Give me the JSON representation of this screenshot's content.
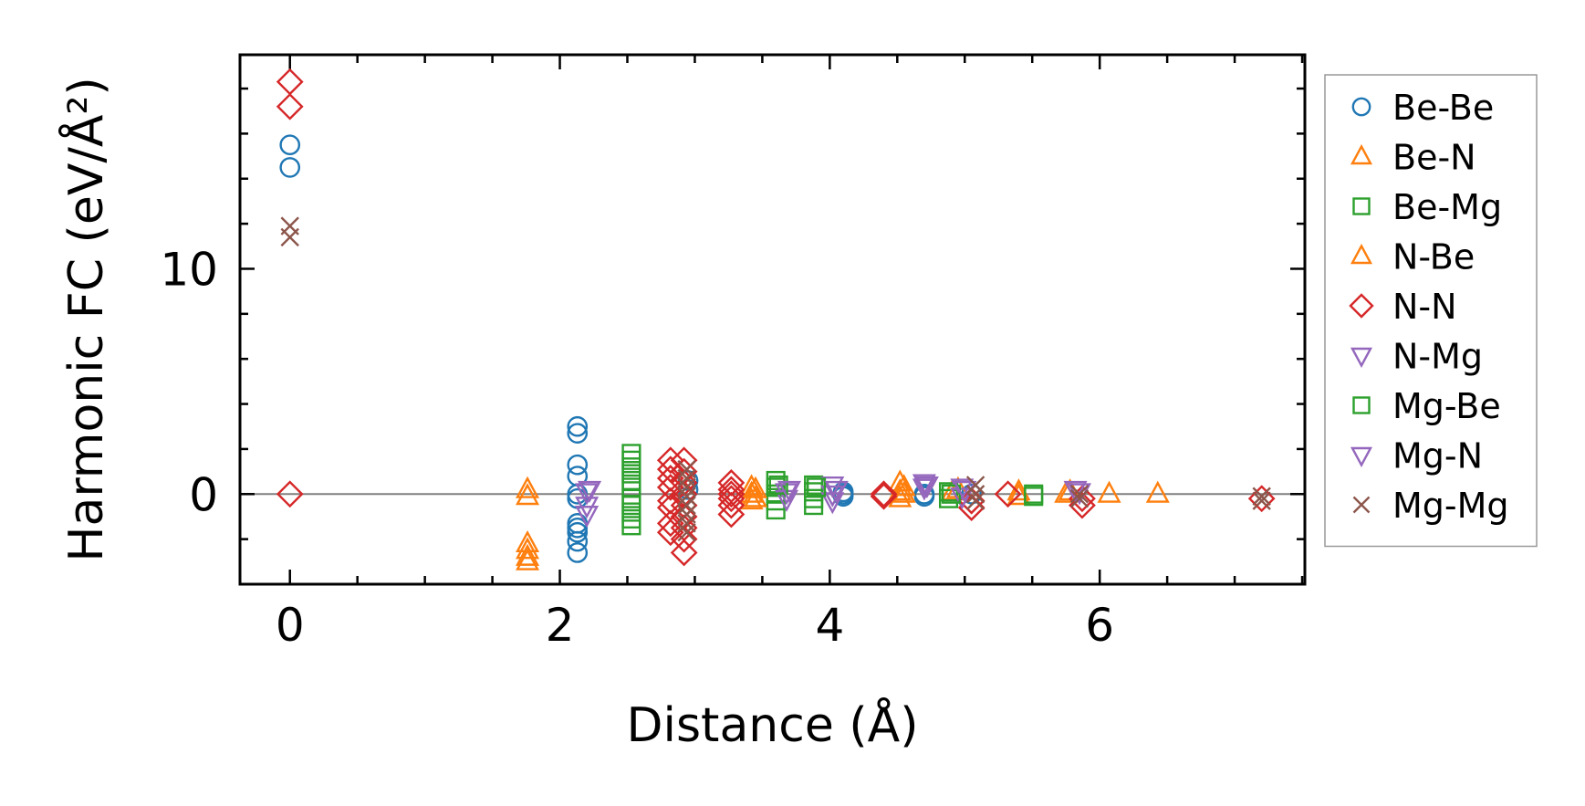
{
  "chart_data": {
    "type": "scatter",
    "title": "",
    "xlabel": "Distance (Å)",
    "ylabel": "Harmonic FC (eV/Å²)",
    "xlim": [
      -0.37,
      7.52
    ],
    "ylim": [
      -4.0,
      19.5
    ],
    "x_ticks": [
      0,
      2,
      4,
      6
    ],
    "x_tick_labels": [
      "0",
      "2",
      "4",
      "6"
    ],
    "y_ticks": [
      0,
      10
    ],
    "y_tick_labels": [
      "0",
      "10"
    ],
    "x_minor_step": 0.5,
    "y_minor_step": 2,
    "zero_line": true,
    "grid": false,
    "legend_position": "outside-right",
    "series": [
      {
        "name": "Be-Be",
        "marker": "circle",
        "color": "#1f77b4",
        "points": [
          [
            0,
            15.5
          ],
          [
            0,
            14.5
          ],
          [
            2.13,
            3.0
          ],
          [
            2.13,
            2.7
          ],
          [
            2.13,
            1.3
          ],
          [
            2.13,
            0.8
          ],
          [
            2.13,
            0.0
          ],
          [
            2.13,
            -0.2
          ],
          [
            2.13,
            -1.3
          ],
          [
            2.13,
            -1.5
          ],
          [
            2.13,
            -1.7
          ],
          [
            2.13,
            -2.1
          ],
          [
            2.13,
            -2.6
          ],
          [
            2.95,
            0.6
          ],
          [
            2.95,
            0.2
          ],
          [
            4.1,
            0.1
          ],
          [
            4.1,
            0.0
          ],
          [
            4.1,
            -0.1
          ],
          [
            4.7,
            0.0
          ],
          [
            4.7,
            -0.1
          ],
          [
            5.05,
            0.0
          ]
        ]
      },
      {
        "name": "Be-N",
        "marker": "triangle-up",
        "color": "#ff7f0e",
        "points": [
          [
            1.76,
            0.2
          ],
          [
            1.76,
            -0.1
          ],
          [
            1.76,
            -2.2
          ],
          [
            1.76,
            -2.5
          ],
          [
            1.76,
            -2.8
          ],
          [
            1.76,
            -3.0
          ],
          [
            3.42,
            0.3
          ],
          [
            3.42,
            0.0
          ],
          [
            3.42,
            -0.3
          ],
          [
            4.52,
            0.5
          ],
          [
            4.52,
            0.1
          ],
          [
            4.52,
            -0.2
          ],
          [
            4.91,
            0.1
          ],
          [
            5.4,
            0.1
          ],
          [
            5.4,
            -0.1
          ],
          [
            5.75,
            0.0
          ],
          [
            6.07,
            0.0
          ],
          [
            6.43,
            0.0
          ]
        ]
      },
      {
        "name": "Be-Mg",
        "marker": "square",
        "color": "#2ca02c",
        "points": [
          [
            2.53,
            1.8
          ],
          [
            2.53,
            1.5
          ],
          [
            2.53,
            1.2
          ],
          [
            2.53,
            0.9
          ],
          [
            2.53,
            0.6
          ],
          [
            2.53,
            0.3
          ],
          [
            2.53,
            -0.2
          ],
          [
            2.53,
            -0.5
          ],
          [
            2.53,
            -0.8
          ],
          [
            2.53,
            -1.1
          ],
          [
            2.53,
            -1.4
          ],
          [
            3.6,
            0.6
          ],
          [
            3.6,
            0.3
          ],
          [
            3.6,
            0.0
          ],
          [
            3.6,
            -0.3
          ],
          [
            3.6,
            -0.7
          ],
          [
            3.88,
            0.4
          ],
          [
            3.88,
            0.1
          ],
          [
            3.88,
            -0.2
          ],
          [
            3.88,
            -0.5
          ],
          [
            4.88,
            0.1
          ],
          [
            4.88,
            -0.2
          ],
          [
            5.51,
            0.0
          ],
          [
            5.51,
            -0.1
          ]
        ]
      },
      {
        "name": "N-Be",
        "marker": "triangle-up",
        "color": "#ff7f0e",
        "points": [
          [
            3.45,
            0.2
          ],
          [
            3.45,
            -0.2
          ],
          [
            4.55,
            0.3
          ],
          [
            4.55,
            0.0
          ],
          [
            4.95,
            0.2
          ],
          [
            5.78,
            0.1
          ]
        ]
      },
      {
        "name": "N-N",
        "marker": "diamond",
        "color": "#d62728",
        "points": [
          [
            0,
            18.3
          ],
          [
            0,
            17.2
          ],
          [
            0,
            0.0
          ],
          [
            2.82,
            1.5
          ],
          [
            2.82,
            1.1
          ],
          [
            2.82,
            0.7
          ],
          [
            2.82,
            0.3
          ],
          [
            2.82,
            -0.3
          ],
          [
            2.82,
            -0.6
          ],
          [
            2.82,
            -1.3
          ],
          [
            2.82,
            -1.7
          ],
          [
            2.92,
            1.5
          ],
          [
            2.92,
            1.0
          ],
          [
            2.92,
            0.5
          ],
          [
            2.92,
            0.0
          ],
          [
            2.92,
            -0.5
          ],
          [
            2.92,
            -1.0
          ],
          [
            2.92,
            -1.5
          ],
          [
            2.92,
            -2.0
          ],
          [
            2.92,
            -2.6
          ],
          [
            3.27,
            0.5
          ],
          [
            3.27,
            0.2
          ],
          [
            3.27,
            0.0
          ],
          [
            3.27,
            -0.2
          ],
          [
            3.27,
            -0.5
          ],
          [
            3.27,
            -0.9
          ],
          [
            4.4,
            0.0
          ],
          [
            4.4,
            -0.1
          ],
          [
            5.05,
            -0.3
          ],
          [
            5.05,
            -0.6
          ],
          [
            5.32,
            0.0
          ],
          [
            5.87,
            -0.2
          ],
          [
            5.87,
            -0.5
          ],
          [
            7.2,
            -0.2
          ]
        ]
      },
      {
        "name": "N-Mg",
        "marker": "triangle-down",
        "color": "#9467bd",
        "points": [
          [
            2.2,
            0.1
          ],
          [
            2.2,
            -0.5
          ],
          [
            2.2,
            -0.9
          ],
          [
            3.68,
            0.1
          ],
          [
            3.68,
            -0.2
          ],
          [
            4.02,
            0.4
          ],
          [
            4.02,
            0.0
          ],
          [
            4.02,
            -0.3
          ],
          [
            4.7,
            0.5
          ],
          [
            4.7,
            0.3
          ],
          [
            4.98,
            0.3
          ],
          [
            4.98,
            -0.1
          ],
          [
            5.82,
            0.2
          ]
        ]
      },
      {
        "name": "Mg-Be",
        "marker": "square",
        "color": "#2ca02c",
        "points": [
          [
            3.62,
            0.4
          ],
          [
            3.9,
            0.3
          ],
          [
            4.9,
            0.0
          ]
        ]
      },
      {
        "name": "Mg-N",
        "marker": "triangle-down",
        "color": "#9467bd",
        "points": [
          [
            2.22,
            0.2
          ],
          [
            3.7,
            0.2
          ],
          [
            4.05,
            0.2
          ],
          [
            4.72,
            0.4
          ],
          [
            5.0,
            0.2
          ],
          [
            5.85,
            0.1
          ]
        ]
      },
      {
        "name": "Mg-Mg",
        "marker": "x",
        "color": "#8c564b",
        "points": [
          [
            0,
            11.9
          ],
          [
            0,
            11.4
          ],
          [
            2.94,
            1.1
          ],
          [
            2.94,
            0.7
          ],
          [
            2.94,
            0.3
          ],
          [
            2.94,
            -0.1
          ],
          [
            2.94,
            -0.5
          ],
          [
            2.94,
            -0.9
          ],
          [
            2.94,
            -1.3
          ],
          [
            2.94,
            -1.7
          ],
          [
            5.08,
            0.4
          ],
          [
            5.08,
            0.0
          ],
          [
            5.08,
            -0.3
          ],
          [
            5.85,
            0.0
          ],
          [
            5.85,
            -0.2
          ],
          [
            7.2,
            -0.1
          ],
          [
            7.2,
            -0.3
          ]
        ]
      }
    ]
  }
}
